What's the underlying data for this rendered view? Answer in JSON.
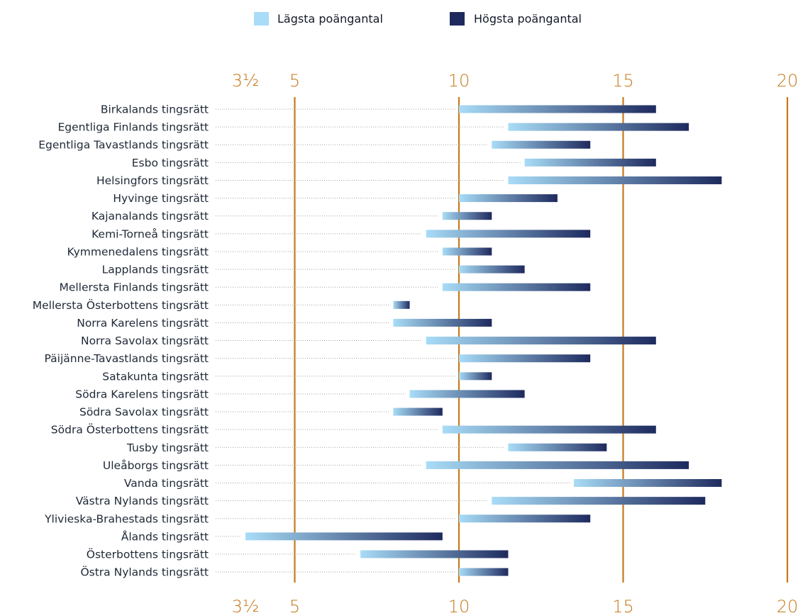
{
  "chart_data": {
    "type": "bar",
    "subtype": "floating-range-bar",
    "orientation": "horizontal",
    "legend": {
      "position": "top-center",
      "entries": [
        {
          "label": "Lägsta poängantal",
          "color": "#a8dcf7"
        },
        {
          "label": "Högsta poängantal",
          "color": "#1e2a5e"
        }
      ]
    },
    "x_axis": {
      "ticks": [
        {
          "value": 3.5,
          "label": "3½",
          "line": false
        },
        {
          "value": 5,
          "label": "5",
          "line": true
        },
        {
          "value": 10,
          "label": "10",
          "line": true
        },
        {
          "value": 15,
          "label": "15",
          "line": true
        },
        {
          "value": 20,
          "label": "20",
          "line": true
        }
      ],
      "xlim": [
        3.5,
        20
      ],
      "position": "top-and-bottom"
    },
    "colors": {
      "low": "#a8dcf7",
      "high": "#1e2a5e",
      "gridline": "#c57a1c",
      "leader": "#a3a3a3"
    },
    "categories": [
      "Birkalands tingsrätt",
      "Egentliga Finlands tingsrätt",
      "Egentliga Tavastlands tingsrätt",
      "Esbo tingsrätt",
      "Helsingfors tingsrätt",
      "Hyvinge tingsrätt",
      "Kajanalands tingsrätt",
      "Kemi-Torneå tingsrätt",
      "Kymmenedalens tingsrätt",
      "Lapplands tingsrätt",
      "Mellersta Finlands tingsrätt",
      "Mellersta Österbottens tingsrätt",
      "Norra Karelens tingsrätt",
      "Norra Savolax tingsrätt",
      "Päijänne-Tavastlands tingsrätt",
      "Satakunta tingsrätt",
      "Södra Karelens tingsrätt",
      "Södra Savolax tingsrätt",
      "Södra Österbottens tingsrätt",
      "Tusby tingsrätt",
      "Uleåborgs tingsrätt",
      "Vanda tingsrätt",
      "Västra Nylands tingsrätt",
      "Ylivieska-Brahestads tingsrätt",
      "Ålands tingsrätt",
      "Österbottens tingsrätt",
      "Östra Nylands tingsrätt"
    ],
    "series": [
      {
        "name": "Lägsta poängantal",
        "values": [
          10,
          11.5,
          11,
          12,
          11.5,
          10,
          9.5,
          9,
          9.5,
          10,
          9.5,
          8,
          8,
          9,
          10,
          10,
          8.5,
          8,
          9.5,
          11.5,
          9,
          13.5,
          11,
          10,
          3.5,
          7,
          10
        ]
      },
      {
        "name": "Högsta poängantal",
        "values": [
          16,
          17,
          14,
          16,
          18,
          13,
          11,
          14,
          11,
          12,
          14,
          8.5,
          11,
          16,
          14,
          11,
          12,
          9.5,
          16,
          14.5,
          17,
          18,
          17.5,
          14,
          9.5,
          11.5,
          11.5
        ]
      }
    ]
  }
}
